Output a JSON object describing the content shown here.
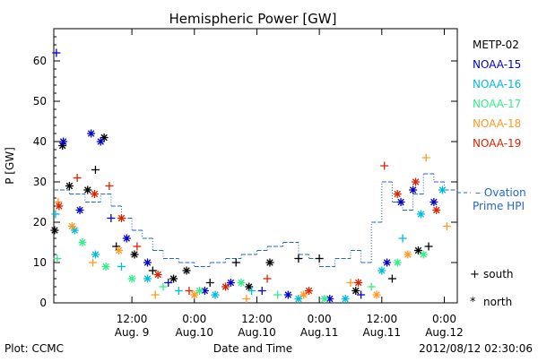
{
  "chart_data": {
    "type": "scatter",
    "title": "Hemispheric Power [GW]",
    "ylabel": "P [GW]",
    "xlabel": "Date and Time",
    "ylim": [
      0,
      68
    ],
    "xlim": [
      "2012-08-08T21:00",
      "2012-08-12T02:30"
    ],
    "grid": false,
    "yticks": [
      0,
      10,
      20,
      30,
      40,
      50,
      60
    ],
    "xticks": [
      {
        "t": "2012-08-09T12:00",
        "top": "12:00",
        "bottom": "Aug. 9"
      },
      {
        "t": "2012-08-10T00:00",
        "top": "0:00",
        "bottom": "Aug.10"
      },
      {
        "t": "2012-08-10T12:00",
        "top": "12:00",
        "bottom": "Aug.10"
      },
      {
        "t": "2012-08-11T00:00",
        "top": "0:00",
        "bottom": "Aug.11"
      },
      {
        "t": "2012-08-11T12:00",
        "top": "12:00",
        "bottom": "Aug.11"
      },
      {
        "t": "2012-08-12T00:00",
        "top": "0:00",
        "bottom": "Aug.12"
      }
    ],
    "legend_placement": "right",
    "series": [
      {
        "name": "METP-02",
        "color": "#000000",
        "points": [
          {
            "t": "2012-08-08T21:10",
            "v": 18,
            "m": "north"
          },
          {
            "t": "2012-08-08T22:40",
            "v": 39,
            "m": "north"
          },
          {
            "t": "2012-08-09T00:00",
            "v": 29,
            "m": "north"
          },
          {
            "t": "2012-08-09T03:30",
            "v": 28,
            "m": "north"
          },
          {
            "t": "2012-08-09T05:00",
            "v": 33,
            "m": "south"
          },
          {
            "t": "2012-08-09T06:40",
            "v": 41,
            "m": "north"
          },
          {
            "t": "2012-08-09T09:00",
            "v": 14,
            "m": "south"
          },
          {
            "t": "2012-08-09T12:30",
            "v": 12,
            "m": "north"
          },
          {
            "t": "2012-08-09T16:00",
            "v": 8,
            "m": "south"
          },
          {
            "t": "2012-08-09T20:00",
            "v": 6,
            "m": "north"
          },
          {
            "t": "2012-08-09T22:30",
            "v": 8,
            "m": "north"
          },
          {
            "t": "2012-08-10T03:00",
            "v": 5,
            "m": "south"
          },
          {
            "t": "2012-08-10T08:00",
            "v": 10,
            "m": "south"
          },
          {
            "t": "2012-08-10T10:30",
            "v": 4,
            "m": "north"
          },
          {
            "t": "2012-08-10T14:30",
            "v": 10,
            "m": "north"
          },
          {
            "t": "2012-08-10T20:00",
            "v": 11,
            "m": "south"
          },
          {
            "t": "2012-08-11T00:00",
            "v": 11,
            "m": "south"
          },
          {
            "t": "2012-08-11T07:00",
            "v": 3,
            "m": "north"
          },
          {
            "t": "2012-08-11T14:00",
            "v": 6,
            "m": "south"
          },
          {
            "t": "2012-08-11T19:00",
            "v": 13,
            "m": "north"
          },
          {
            "t": "2012-08-11T21:00",
            "v": 14,
            "m": "south"
          }
        ]
      },
      {
        "name": "NOAA-15",
        "color": "#0000cc",
        "points": [
          {
            "t": "2012-08-08T21:30",
            "v": 62,
            "m": "south"
          },
          {
            "t": "2012-08-08T22:50",
            "v": 40,
            "m": "north"
          },
          {
            "t": "2012-08-09T02:00",
            "v": 23,
            "m": "north"
          },
          {
            "t": "2012-08-09T04:10",
            "v": 42,
            "m": "north"
          },
          {
            "t": "2012-08-09T06:00",
            "v": 40,
            "m": "north"
          },
          {
            "t": "2012-08-09T08:00",
            "v": 21,
            "m": "south"
          },
          {
            "t": "2012-08-09T11:00",
            "v": 16,
            "m": "north"
          },
          {
            "t": "2012-08-09T15:00",
            "v": 10,
            "m": "north"
          },
          {
            "t": "2012-08-09T19:00",
            "v": 5,
            "m": "south"
          },
          {
            "t": "2012-08-10T02:00",
            "v": 3,
            "m": "north"
          },
          {
            "t": "2012-08-10T07:00",
            "v": 5,
            "m": "north"
          },
          {
            "t": "2012-08-10T13:00",
            "v": 3,
            "m": "south"
          },
          {
            "t": "2012-08-10T18:00",
            "v": 2,
            "m": "north"
          },
          {
            "t": "2012-08-11T02:00",
            "v": 1,
            "m": "north"
          },
          {
            "t": "2012-08-11T08:00",
            "v": 2,
            "m": "south"
          },
          {
            "t": "2012-08-11T13:00",
            "v": 10,
            "m": "north"
          },
          {
            "t": "2012-08-11T15:40",
            "v": 25,
            "m": "north"
          },
          {
            "t": "2012-08-11T18:00",
            "v": 28,
            "m": "north"
          },
          {
            "t": "2012-08-11T22:00",
            "v": 25,
            "m": "north"
          }
        ]
      },
      {
        "name": "NOAA-16",
        "color": "#00bbdd",
        "points": [
          {
            "t": "2012-08-08T21:20",
            "v": 22,
            "m": "south"
          },
          {
            "t": "2012-08-09T01:00",
            "v": 18,
            "m": "north"
          },
          {
            "t": "2012-08-09T05:00",
            "v": 12,
            "m": "north"
          },
          {
            "t": "2012-08-09T10:00",
            "v": 9,
            "m": "south"
          },
          {
            "t": "2012-08-09T15:00",
            "v": 6,
            "m": "north"
          },
          {
            "t": "2012-08-09T21:00",
            "v": 3,
            "m": "south"
          },
          {
            "t": "2012-08-10T04:00",
            "v": 2,
            "m": "north"
          },
          {
            "t": "2012-08-10T11:00",
            "v": 3,
            "m": "south"
          },
          {
            "t": "2012-08-10T20:00",
            "v": 1,
            "m": "north"
          },
          {
            "t": "2012-08-11T05:00",
            "v": 1,
            "m": "north"
          },
          {
            "t": "2012-08-11T12:00",
            "v": 8,
            "m": "north"
          },
          {
            "t": "2012-08-11T16:00",
            "v": 16,
            "m": "south"
          },
          {
            "t": "2012-08-11T19:30",
            "v": 22,
            "m": "north"
          },
          {
            "t": "2012-08-11T23:40",
            "v": 28,
            "m": "north"
          }
        ]
      },
      {
        "name": "NOAA-17",
        "color": "#33ee88",
        "points": [
          {
            "t": "2012-08-08T21:40",
            "v": 11,
            "m": "south"
          },
          {
            "t": "2012-08-09T02:30",
            "v": 15,
            "m": "north"
          },
          {
            "t": "2012-08-09T07:00",
            "v": 9,
            "m": "north"
          },
          {
            "t": "2012-08-09T12:00",
            "v": 6,
            "m": "north"
          },
          {
            "t": "2012-08-09T18:00",
            "v": 4,
            "m": "south"
          },
          {
            "t": "2012-08-10T01:00",
            "v": 3,
            "m": "north"
          },
          {
            "t": "2012-08-10T09:00",
            "v": 5,
            "m": "north"
          },
          {
            "t": "2012-08-10T16:00",
            "v": 2,
            "m": "south"
          },
          {
            "t": "2012-08-11T01:00",
            "v": 1,
            "m": "north"
          },
          {
            "t": "2012-08-11T10:00",
            "v": 4,
            "m": "south"
          },
          {
            "t": "2012-08-11T15:00",
            "v": 10,
            "m": "north"
          },
          {
            "t": "2012-08-11T20:00",
            "v": 12,
            "m": "north"
          }
        ]
      },
      {
        "name": "NOAA-18",
        "color": "#ff9922",
        "points": [
          {
            "t": "2012-08-08T21:50",
            "v": 25,
            "m": "south"
          },
          {
            "t": "2012-08-09T00:30",
            "v": 19,
            "m": "north"
          },
          {
            "t": "2012-08-09T04:30",
            "v": 10,
            "m": "south"
          },
          {
            "t": "2012-08-09T09:30",
            "v": 13,
            "m": "north"
          },
          {
            "t": "2012-08-09T16:30",
            "v": 2,
            "m": "south"
          },
          {
            "t": "2012-08-10T00:00",
            "v": 2,
            "m": "north"
          },
          {
            "t": "2012-08-10T10:00",
            "v": 1,
            "m": "south"
          },
          {
            "t": "2012-08-10T21:00",
            "v": 2,
            "m": "north"
          },
          {
            "t": "2012-08-11T06:00",
            "v": 5,
            "m": "south"
          },
          {
            "t": "2012-08-11T11:00",
            "v": 2,
            "m": "north"
          },
          {
            "t": "2012-08-11T17:00",
            "v": 12,
            "m": "north"
          },
          {
            "t": "2012-08-11T20:30",
            "v": 36,
            "m": "south"
          },
          {
            "t": "2012-08-12T00:30",
            "v": 19,
            "m": "south"
          }
        ]
      },
      {
        "name": "NOAA-19",
        "color": "#dd2200",
        "points": [
          {
            "t": "2012-08-08T22:00",
            "v": 24,
            "m": "north"
          },
          {
            "t": "2012-08-09T01:30",
            "v": 31,
            "m": "south"
          },
          {
            "t": "2012-08-09T04:50",
            "v": 27,
            "m": "north"
          },
          {
            "t": "2012-08-09T07:40",
            "v": 29,
            "m": "south"
          },
          {
            "t": "2012-08-09T10:00",
            "v": 21,
            "m": "north"
          },
          {
            "t": "2012-08-09T13:00",
            "v": 14,
            "m": "south"
          },
          {
            "t": "2012-08-09T17:00",
            "v": 7,
            "m": "north"
          },
          {
            "t": "2012-08-09T23:00",
            "v": 3,
            "m": "south"
          },
          {
            "t": "2012-08-10T06:00",
            "v": 4,
            "m": "north"
          },
          {
            "t": "2012-08-10T14:00",
            "v": 6,
            "m": "south"
          },
          {
            "t": "2012-08-10T22:00",
            "v": 3,
            "m": "north"
          },
          {
            "t": "2012-08-11T07:30",
            "v": 5,
            "m": "north"
          },
          {
            "t": "2012-08-11T12:30",
            "v": 34,
            "m": "south"
          },
          {
            "t": "2012-08-11T15:00",
            "v": 27,
            "m": "north"
          },
          {
            "t": "2012-08-11T18:30",
            "v": 30,
            "m": "north"
          },
          {
            "t": "2012-08-11T22:30",
            "v": 23,
            "m": "north"
          }
        ]
      }
    ],
    "ovation": {
      "name": "-- Ovation Prime HPI",
      "name_line1": "– Ovation",
      "name_line2": "Prime HPI",
      "color": "#2266cc",
      "steps": [
        {
          "t": "2012-08-08T21:00",
          "v": 28
        },
        {
          "t": "2012-08-09T00:00",
          "v": 27
        },
        {
          "t": "2012-08-09T03:00",
          "v": 25
        },
        {
          "t": "2012-08-09T06:00",
          "v": 27
        },
        {
          "t": "2012-08-09T08:00",
          "v": 24
        },
        {
          "t": "2012-08-09T10:00",
          "v": 21
        },
        {
          "t": "2012-08-09T12:00",
          "v": 18
        },
        {
          "t": "2012-08-09T14:00",
          "v": 16
        },
        {
          "t": "2012-08-09T16:00",
          "v": 13
        },
        {
          "t": "2012-08-09T18:00",
          "v": 11
        },
        {
          "t": "2012-08-09T21:00",
          "v": 10
        },
        {
          "t": "2012-08-10T00:00",
          "v": 9
        },
        {
          "t": "2012-08-10T03:00",
          "v": 10
        },
        {
          "t": "2012-08-10T06:00",
          "v": 11
        },
        {
          "t": "2012-08-10T09:00",
          "v": 12
        },
        {
          "t": "2012-08-10T12:00",
          "v": 13
        },
        {
          "t": "2012-08-10T14:00",
          "v": 14
        },
        {
          "t": "2012-08-10T17:00",
          "v": 15
        },
        {
          "t": "2012-08-10T20:00",
          "v": 12
        },
        {
          "t": "2012-08-10T22:00",
          "v": 11
        },
        {
          "t": "2012-08-11T00:00",
          "v": 9
        },
        {
          "t": "2012-08-11T03:00",
          "v": 11
        },
        {
          "t": "2012-08-11T06:00",
          "v": 13
        },
        {
          "t": "2012-08-11T08:00",
          "v": 10
        },
        {
          "t": "2012-08-11T10:00",
          "v": 20
        },
        {
          "t": "2012-08-11T12:00",
          "v": 30
        },
        {
          "t": "2012-08-11T14:00",
          "v": 25
        },
        {
          "t": "2012-08-11T16:00",
          "v": 23
        },
        {
          "t": "2012-08-11T18:00",
          "v": 27
        },
        {
          "t": "2012-08-11T20:00",
          "v": 32
        },
        {
          "t": "2012-08-11T22:00",
          "v": 30
        },
        {
          "t": "2012-08-12T00:00",
          "v": 28
        },
        {
          "t": "2012-08-12T02:30",
          "v": 28
        }
      ]
    },
    "marker_legend": [
      {
        "symbol": "+",
        "label": "south"
      },
      {
        "symbol": "*",
        "label": "north"
      }
    ]
  },
  "footer": {
    "plot_credit": "Plot: CCMC",
    "timestamp": "2012/08/12 02:30:06"
  }
}
